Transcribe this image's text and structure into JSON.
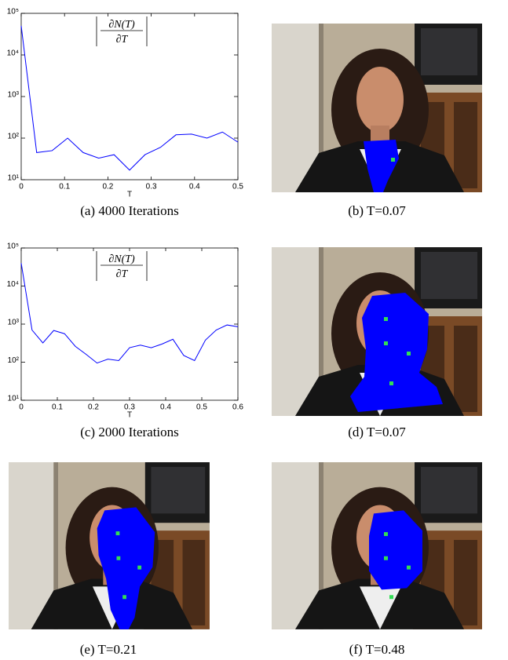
{
  "chart_data": [
    {
      "type": "line",
      "xlabel": "T",
      "annotation": {
        "numerator": "∂N(T)",
        "denominator": "∂T"
      },
      "x": [
        0,
        0.0357,
        0.0714,
        0.1071,
        0.1429,
        0.1786,
        0.2143,
        0.25,
        0.2857,
        0.3214,
        0.3571,
        0.3929,
        0.4286,
        0.4643,
        0.5
      ],
      "series": [
        {
          "color": "#0000ff",
          "values": [
            50000,
            45,
            50,
            100,
            45,
            33,
            40,
            17,
            40,
            60,
            120,
            125,
            100,
            140,
            80
          ]
        }
      ],
      "xlim": [
        0,
        0.5
      ],
      "xticks": [
        0,
        0.1,
        0.2,
        0.3,
        0.4,
        0.5
      ],
      "ylim": [
        10,
        100000
      ],
      "log_y": true,
      "yticks": [
        {
          "value": 10,
          "label": "10¹"
        },
        {
          "value": 100,
          "label": "10²"
        },
        {
          "value": 1000,
          "label": "10³"
        },
        {
          "value": 10000,
          "label": "10⁴"
        },
        {
          "value": 100000,
          "label": "10⁵"
        }
      ]
    },
    {
      "type": "line",
      "xlabel": "T",
      "annotation": {
        "numerator": "∂N(T)",
        "denominator": "∂T"
      },
      "x": [
        0,
        0.03,
        0.06,
        0.09,
        0.12,
        0.15,
        0.18,
        0.21,
        0.24,
        0.27,
        0.3,
        0.33,
        0.36,
        0.39,
        0.42,
        0.45,
        0.48,
        0.51,
        0.54,
        0.57,
        0.6
      ],
      "series": [
        {
          "color": "#0000ff",
          "values": [
            40000,
            700,
            320,
            680,
            560,
            260,
            160,
            95,
            120,
            110,
            240,
            280,
            240,
            300,
            400,
            150,
            110,
            380,
            700,
            950,
            850
          ]
        }
      ],
      "xlim": [
        0,
        0.6
      ],
      "xticks": [
        0,
        0.1,
        0.2,
        0.3,
        0.4,
        0.5,
        0.6
      ],
      "ylim": [
        10,
        100000
      ],
      "log_y": true,
      "yticks": [
        {
          "value": 10,
          "label": "10¹"
        },
        {
          "value": 100,
          "label": "10²"
        },
        {
          "value": 1000,
          "label": "10³"
        },
        {
          "value": 10000,
          "label": "10⁴"
        },
        {
          "value": 100000,
          "label": "10⁵"
        }
      ]
    }
  ],
  "captions": [
    "(a)  4000 Iterations",
    "(b)  T=0.07",
    "(c)  2000 Iterations",
    "(d)  T=0.07",
    "(e)  T=0.21",
    "(f)  T=0.48"
  ]
}
